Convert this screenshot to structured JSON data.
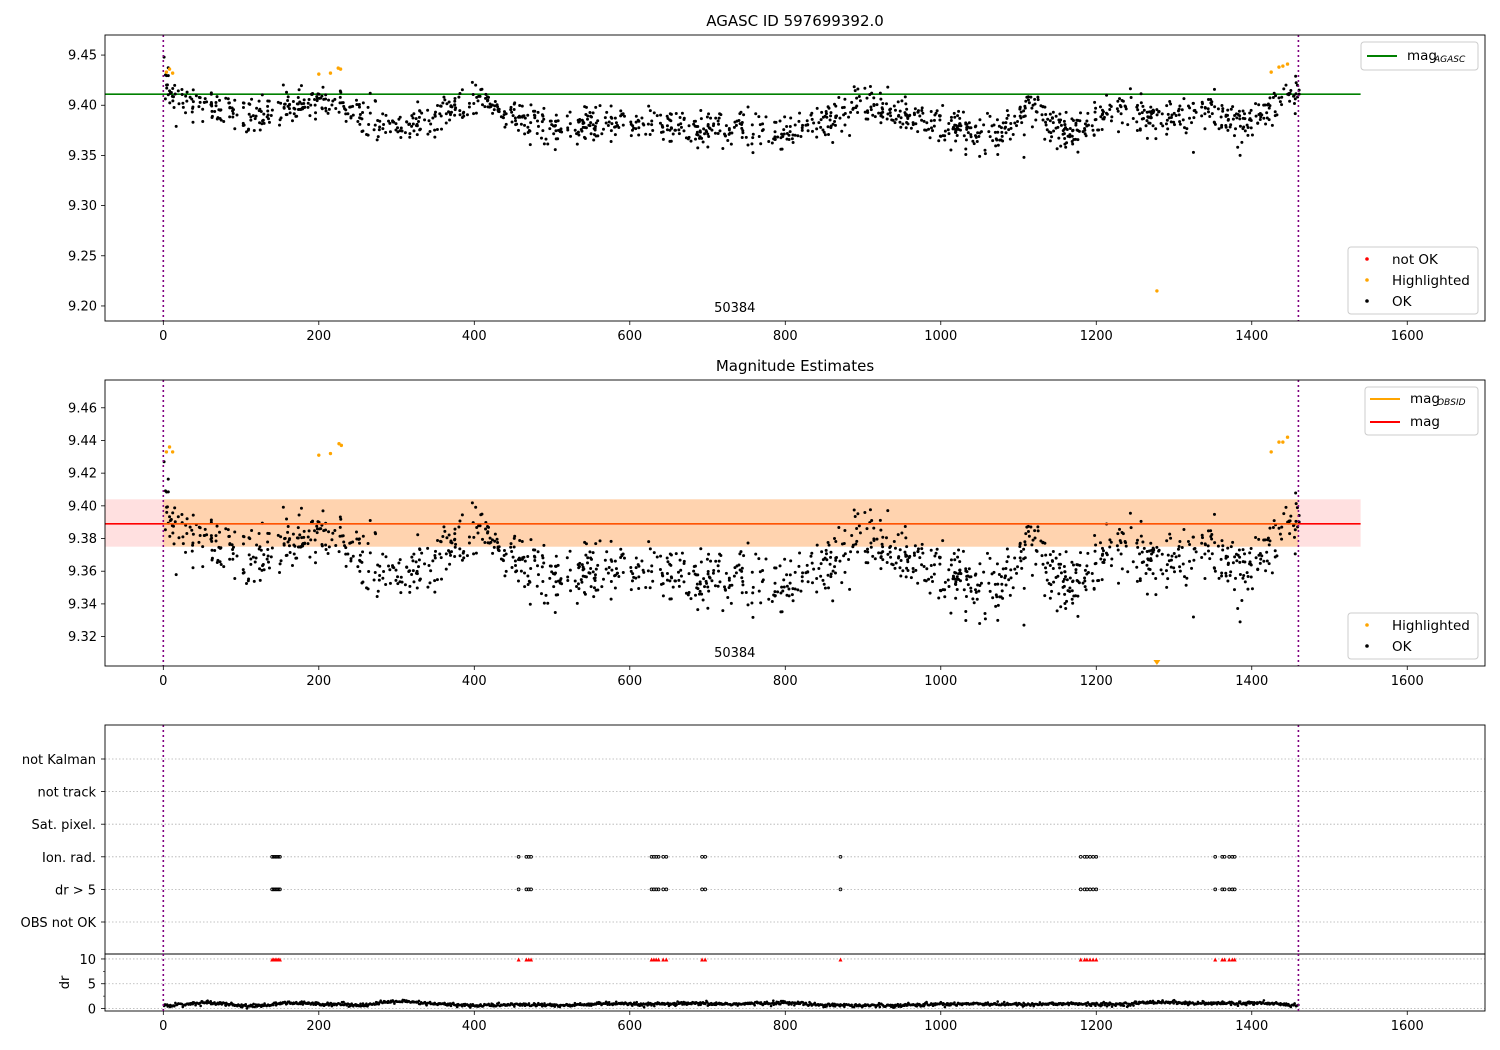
{
  "chart_data": [
    {
      "type": "scatter",
      "title": "AGASC ID 597699392.0",
      "xlim": [
        -75,
        1700
      ],
      "ylim": [
        9.185,
        9.47
      ],
      "xticks": [
        0,
        200,
        400,
        600,
        800,
        1000,
        1200,
        1400,
        1600
      ],
      "xtick_labels": [
        "0",
        "200",
        "400",
        "600",
        "800",
        "1000",
        "1200",
        "1400",
        "1600"
      ],
      "yticks": [
        9.2,
        9.25,
        9.3,
        9.35,
        9.4,
        9.45
      ],
      "ytick_labels": [
        "9.20",
        "9.25",
        "9.30",
        "9.35",
        "9.40",
        "9.45"
      ],
      "annotation": "50384",
      "annotation_x": 735,
      "obs_bounds": [
        0,
        1460
      ],
      "mag_agasc": 9.411,
      "mag_agasc_xrange": [
        -75,
        1540
      ],
      "legend_top": {
        "placement": "top-right",
        "line": "mag",
        "sub": "AGASC",
        "color": "#008000"
      },
      "legend_bottom": {
        "placement": "bottom-right",
        "entries": [
          {
            "label": "not OK",
            "color": "#ff0000"
          },
          {
            "label": "Highlighted",
            "color": "#ffa500"
          },
          {
            "label": "OK",
            "color": "#000000"
          }
        ]
      },
      "series": [
        {
          "name": "OK",
          "color": "#000000",
          "trend": [
            [
              0,
              9.425
            ],
            [
              15,
              9.41
            ],
            [
              50,
              9.4
            ],
            [
              100,
              9.39
            ],
            [
              150,
              9.392
            ],
            [
              200,
              9.405
            ],
            [
              230,
              9.4
            ],
            [
              260,
              9.385
            ],
            [
              300,
              9.38
            ],
            [
              340,
              9.38
            ],
            [
              380,
              9.4
            ],
            [
              410,
              9.405
            ],
            [
              440,
              9.39
            ],
            [
              480,
              9.38
            ],
            [
              520,
              9.375
            ],
            [
              560,
              9.38
            ],
            [
              600,
              9.38
            ],
            [
              640,
              9.38
            ],
            [
              680,
              9.375
            ],
            [
              700,
              9.375
            ],
            [
              730,
              9.38
            ],
            [
              760,
              9.375
            ],
            [
              800,
              9.372
            ],
            [
              840,
              9.38
            ],
            [
              880,
              9.395
            ],
            [
              920,
              9.4
            ],
            [
              960,
              9.39
            ],
            [
              1000,
              9.38
            ],
            [
              1040,
              9.375
            ],
            [
              1080,
              9.37
            ],
            [
              1100,
              9.39
            ],
            [
              1120,
              9.395
            ],
            [
              1160,
              9.372
            ],
            [
              1190,
              9.38
            ],
            [
              1220,
              9.395
            ],
            [
              1260,
              9.39
            ],
            [
              1300,
              9.39
            ],
            [
              1340,
              9.395
            ],
            [
              1380,
              9.38
            ],
            [
              1420,
              9.395
            ],
            [
              1440,
              9.41
            ],
            [
              1460,
              9.41
            ]
          ],
          "scatter": 0.016
        },
        {
          "name": "Highlighted",
          "color": "#ffa500",
          "points": [
            [
              4,
              9.433
            ],
            [
              8,
              9.436
            ],
            [
              12,
              9.432
            ],
            [
              200,
              9.431
            ],
            [
              215,
              9.432
            ],
            [
              225,
              9.437
            ],
            [
              228,
              9.436
            ],
            [
              1278,
              9.215
            ],
            [
              1425,
              9.433
            ],
            [
              1435,
              9.438
            ],
            [
              1440,
              9.439
            ],
            [
              1446,
              9.441
            ]
          ]
        }
      ],
      "outliers": [
        [
          1107,
          9.348
        ],
        [
          1325,
          9.353
        ],
        [
          1385,
          9.35
        ],
        [
          1050,
          9.349
        ]
      ]
    },
    {
      "type": "scatter",
      "title": "Magnitude Estimates",
      "xlim": [
        -75,
        1700
      ],
      "ylim": [
        9.302,
        9.477
      ],
      "xticks": [
        0,
        200,
        400,
        600,
        800,
        1000,
        1200,
        1400,
        1600
      ],
      "xtick_labels": [
        "0",
        "200",
        "400",
        "600",
        "800",
        "1000",
        "1200",
        "1400",
        "1600"
      ],
      "yticks": [
        9.32,
        9.34,
        9.36,
        9.38,
        9.4,
        9.42,
        9.44,
        9.46
      ],
      "ytick_labels": [
        "9.32",
        "9.34",
        "9.36",
        "9.38",
        "9.40",
        "9.42",
        "9.44",
        "9.46"
      ],
      "annotation": "50384",
      "annotation_x": 735,
      "obs_bounds": [
        0,
        1460
      ],
      "mag": 9.389,
      "mag_band": [
        9.375,
        9.404
      ],
      "mag_obsid_band": [
        9.375,
        9.404
      ],
      "band_xrange": [
        -75,
        1540
      ],
      "legend_top": {
        "placement": "top-right",
        "entries": [
          {
            "label": "mag",
            "sub": "OBSID",
            "color": "#ffa500"
          },
          {
            "label": "mag",
            "sub": "",
            "color": "#ff0000"
          }
        ]
      },
      "legend_bottom": {
        "placement": "bottom-right",
        "entries": [
          {
            "label": "Highlighted",
            "color": "#ffa500"
          },
          {
            "label": "OK",
            "color": "#000000"
          }
        ]
      },
      "series": [
        {
          "name": "Highlighted",
          "color": "#ffa500",
          "points": [
            [
              4,
              9.433
            ],
            [
              8,
              9.436
            ],
            [
              12,
              9.433
            ],
            [
              200,
              9.431
            ],
            [
              215,
              9.432
            ],
            [
              226,
              9.438
            ],
            [
              229,
              9.437
            ],
            [
              1425,
              9.433
            ],
            [
              1435,
              9.439
            ],
            [
              1440,
              9.439
            ],
            [
              1446,
              9.442
            ]
          ]
        }
      ],
      "clipped_marker": {
        "x": 1278,
        "color": "#ffa500"
      }
    },
    {
      "type": "scatter",
      "title": "",
      "xlim": [
        -75,
        1700
      ],
      "xticks": [
        0,
        200,
        400,
        600,
        800,
        1000,
        1200,
        1400,
        1600
      ],
      "xtick_labels": [
        "0",
        "200",
        "400",
        "600",
        "800",
        "1000",
        "1200",
        "1400",
        "1600"
      ],
      "obs_bounds": [
        0,
        1460
      ],
      "flag_rows": [
        "not Kalman",
        "not track",
        "Sat. pixel.",
        "Ion. rad.",
        "dr > 5",
        "OBS not OK"
      ],
      "flag_points": {
        "Ion. rad.": [
          140,
          142,
          144,
          146,
          148,
          150,
          457,
          467,
          470,
          473,
          628,
          631,
          634,
          637,
          643,
          647,
          693,
          697,
          871,
          1180,
          1185,
          1188,
          1192,
          1196,
          1200,
          1353,
          1362,
          1365,
          1371,
          1375,
          1378
        ],
        "dr > 5": [
          140,
          142,
          144,
          146,
          148,
          150,
          457,
          467,
          470,
          473,
          628,
          631,
          634,
          637,
          643,
          647,
          693,
          697,
          871,
          1180,
          1185,
          1188,
          1192,
          1196,
          1200,
          1353,
          1362,
          1365,
          1371,
          1375,
          1378
        ]
      },
      "dr_ylabel": "dr",
      "dr_yticks": [
        0,
        5,
        10
      ],
      "dr_ytick_labels": [
        "0",
        "5",
        "10"
      ],
      "dr_ylim": [
        -0.5,
        11
      ],
      "dr_clipped_x": [
        140,
        142,
        144,
        146,
        148,
        150,
        457,
        467,
        470,
        473,
        628,
        631,
        634,
        637,
        643,
        647,
        693,
        697,
        871,
        1180,
        1185,
        1188,
        1192,
        1196,
        1200,
        1353,
        1362,
        1365,
        1371,
        1375,
        1378
      ],
      "dr_clipped_color": "#ff0000",
      "dr_trend": [
        [
          0,
          0.6
        ],
        [
          40,
          1.0
        ],
        [
          60,
          1.3
        ],
        [
          100,
          0.6
        ],
        [
          120,
          0.5
        ],
        [
          160,
          1.1
        ],
        [
          220,
          0.9
        ],
        [
          260,
          0.7
        ],
        [
          300,
          1.5
        ],
        [
          340,
          1.0
        ],
        [
          400,
          0.6
        ],
        [
          460,
          0.8
        ],
        [
          520,
          0.6
        ],
        [
          560,
          1.0
        ],
        [
          620,
          0.8
        ],
        [
          680,
          1.0
        ],
        [
          740,
          0.9
        ],
        [
          800,
          1.2
        ],
        [
          840,
          0.8
        ],
        [
          900,
          0.6
        ],
        [
          960,
          0.7
        ],
        [
          1000,
          0.9
        ],
        [
          1050,
          1.0
        ],
        [
          1100,
          0.8
        ],
        [
          1160,
          1.0
        ],
        [
          1200,
          0.8
        ],
        [
          1240,
          0.9
        ],
        [
          1280,
          1.4
        ],
        [
          1330,
          1.0
        ],
        [
          1400,
          1.1
        ],
        [
          1460,
          0.7
        ]
      ]
    }
  ]
}
